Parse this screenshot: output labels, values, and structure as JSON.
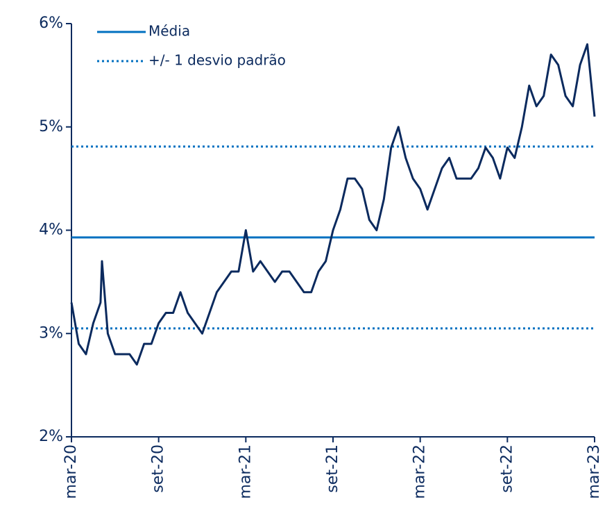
{
  "chart_data": {
    "type": "line",
    "x": [
      0,
      0.5,
      1,
      1.5,
      2,
      2.1,
      2.5,
      3,
      3.5,
      4,
      4.5,
      5,
      5.5,
      6,
      6.5,
      7,
      7.5,
      8,
      8.5,
      9,
      9.5,
      10,
      10.5,
      11,
      11.5,
      12,
      12.5,
      13,
      13.5,
      14,
      14.5,
      15,
      15.5,
      16,
      16.5,
      17,
      17.5,
      18,
      18.5,
      19,
      19.5,
      20,
      20.5,
      21,
      21.5,
      22,
      22.5,
      23,
      23.5,
      24,
      24.5,
      25,
      25.5,
      26,
      26.5,
      27,
      27.5,
      28,
      28.5,
      29,
      29.5,
      30,
      30.5,
      31,
      31.5,
      32,
      32.5,
      33,
      33.5,
      34,
      34.5,
      35,
      35.5,
      36
    ],
    "series": [
      {
        "color": "#0b2a5e",
        "values": [
          3.3,
          2.9,
          2.8,
          3.1,
          3.3,
          3.7,
          3.0,
          2.8,
          2.8,
          2.8,
          2.7,
          2.9,
          2.9,
          3.1,
          3.2,
          3.2,
          3.4,
          3.2,
          3.1,
          3.0,
          3.2,
          3.4,
          3.5,
          3.6,
          3.6,
          4.0,
          3.6,
          3.7,
          3.6,
          3.5,
          3.6,
          3.6,
          3.5,
          3.4,
          3.4,
          3.6,
          3.7,
          4.0,
          4.2,
          4.5,
          4.5,
          4.4,
          4.1,
          4.0,
          4.3,
          4.8,
          5.0,
          4.7,
          4.5,
          4.4,
          4.2,
          4.4,
          4.6,
          4.7,
          4.5,
          4.5,
          4.5,
          4.6,
          4.8,
          4.7,
          4.5,
          4.8,
          4.7,
          5.0,
          5.4,
          5.2,
          5.3,
          5.7,
          5.6,
          5.3,
          5.2,
          5.6,
          5.8,
          5.1
        ]
      }
    ],
    "reference_lines": [
      {
        "name": "Média",
        "color": "#0070c0",
        "style": "solid",
        "values": [
          3.93
        ]
      },
      {
        "name": "+/- 1 desvio padrão",
        "color": "#0070c0",
        "style": "dotted",
        "values": [
          3.05,
          4.81
        ]
      }
    ],
    "xlim": [
      0,
      36
    ],
    "xticks": [
      {
        "value": 0,
        "label": "mar-20"
      },
      {
        "value": 6,
        "label": "set-20"
      },
      {
        "value": 12,
        "label": "mar-21"
      },
      {
        "value": 18,
        "label": "set-21"
      },
      {
        "value": 24,
        "label": "mar-22"
      },
      {
        "value": 30,
        "label": "set-22"
      },
      {
        "value": 36,
        "label": "mar-23"
      }
    ],
    "ylim": [
      2,
      6
    ],
    "yticks": [
      {
        "value": 2,
        "label": "2%"
      },
      {
        "value": 3,
        "label": "3%"
      },
      {
        "value": 4,
        "label": "4%"
      },
      {
        "value": 5,
        "label": "5%"
      },
      {
        "value": 6,
        "label": "6%"
      }
    ],
    "legend": "upper left"
  }
}
